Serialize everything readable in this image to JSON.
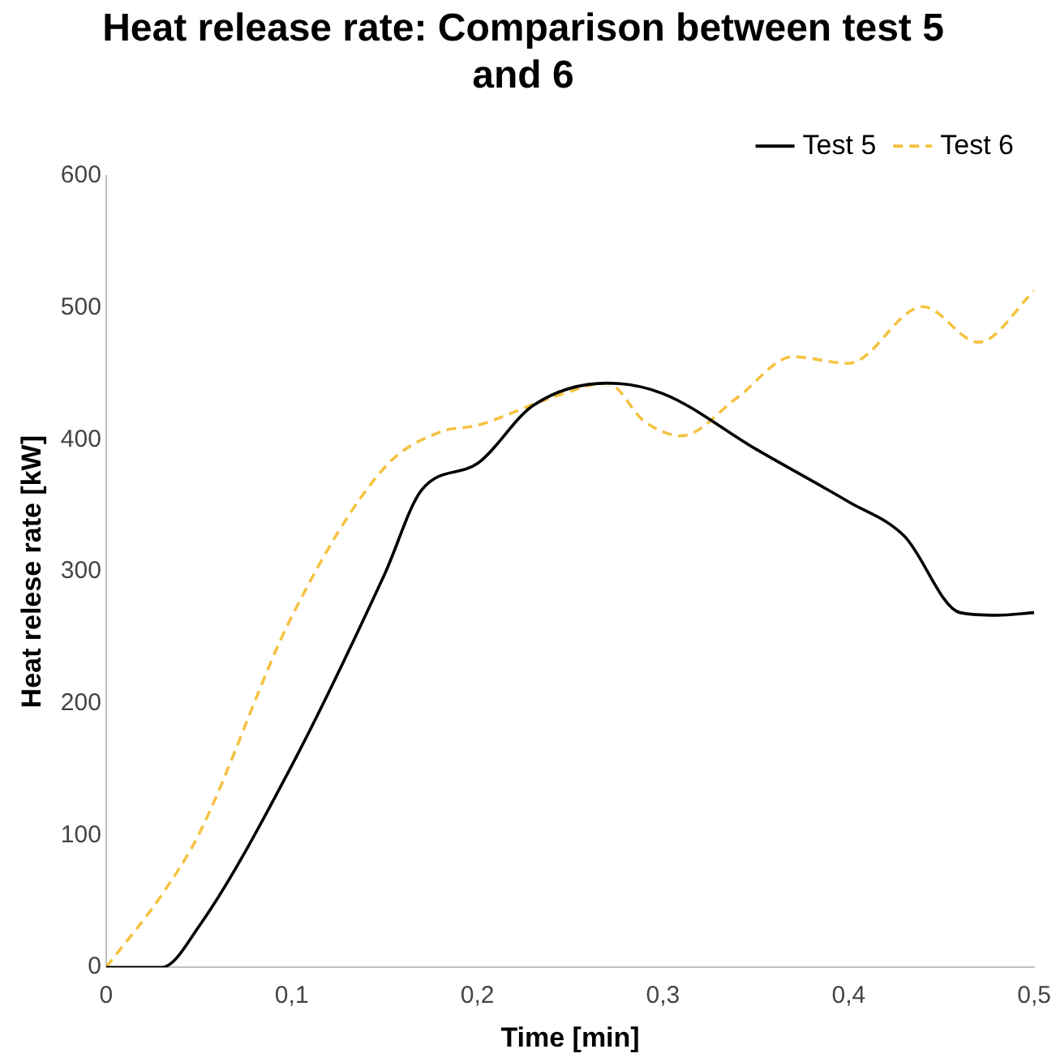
{
  "chart_data": {
    "type": "line",
    "title": "Heat release rate: Comparison between test 5 and 6",
    "xlabel": "Time [min]",
    "ylabel": "Heat relese rate [kW]",
    "xlim": [
      0,
      0.5
    ],
    "xticks": [
      {
        "value": 0,
        "label": "0"
      },
      {
        "value": 0.1,
        "label": "0,1"
      },
      {
        "value": 0.2,
        "label": "0,2"
      },
      {
        "value": 0.3,
        "label": "0,3"
      },
      {
        "value": 0.4,
        "label": "0,4"
      },
      {
        "value": 0.5,
        "label": "0,5"
      }
    ],
    "ylim": [
      0,
      600
    ],
    "yticks": [
      0,
      100,
      200,
      300,
      400,
      500,
      600
    ],
    "grid": false,
    "legend": "top right",
    "marker": "none",
    "series": [
      {
        "name": "Test 5",
        "color": "#000000",
        "line_style": "solid",
        "x": [
          0,
          0.03,
          0.05,
          0.1,
          0.15,
          0.17,
          0.2,
          0.23,
          0.27,
          0.3,
          0.35,
          0.4,
          0.43,
          0.46,
          0.48,
          0.5
        ],
        "values": [
          0,
          0,
          31,
          153,
          298,
          362,
          382,
          426,
          443,
          435,
          393,
          353,
          327,
          269,
          267,
          269
        ]
      },
      {
        "name": "Test 6",
        "color": "#f5c242",
        "line_style": "dashed",
        "x": [
          0,
          0.03,
          0.05,
          0.1,
          0.15,
          0.18,
          0.2,
          0.24,
          0.27,
          0.29,
          0.31,
          0.34,
          0.37,
          0.4,
          0.44,
          0.47,
          0.5
        ],
        "values": [
          0,
          55,
          101,
          266,
          379,
          406,
          411,
          432,
          443,
          414,
          403,
          432,
          463,
          458,
          501,
          474,
          513
        ]
      }
    ]
  }
}
